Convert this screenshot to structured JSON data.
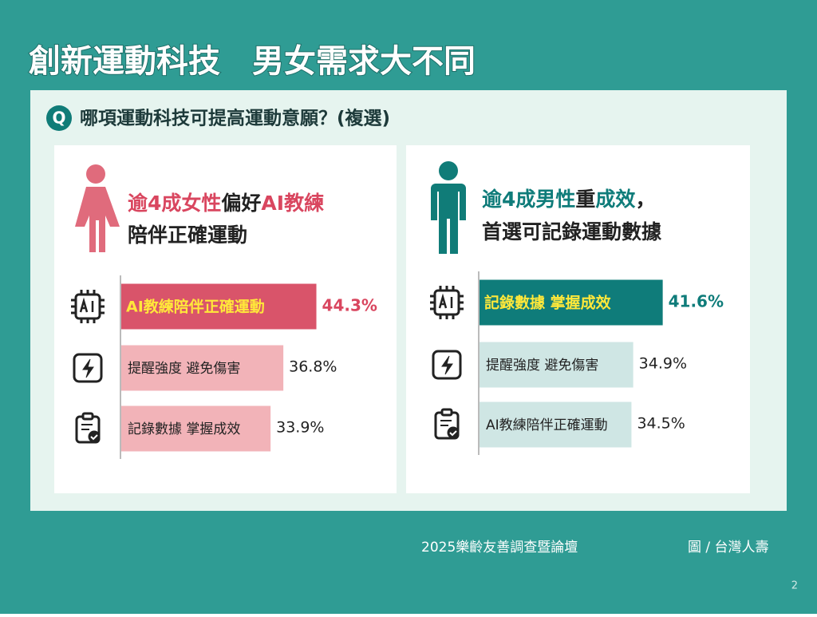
{
  "title": "創新運動科技　男女需求大不同",
  "question": {
    "icon": "Q",
    "text": "哪項運動科技可提高運動意願？(複選)"
  },
  "chart_data": [
    {
      "type": "bar",
      "headline": [
        [
          "逾4成女性",
          "偏好",
          "AI教練"
        ],
        [
          "陪伴正確運動"
        ]
      ],
      "categories": [
        "AI教練陪伴正確運動",
        "提醒強度 避免傷害",
        "記錄數據 掌握成效"
      ],
      "values": [
        44.3,
        36.8,
        33.9
      ],
      "value_labels": [
        "44.3%",
        "36.8%",
        "33.9%"
      ],
      "colors": [
        "#d9546a",
        "#f2b3b8",
        "#f2b3b8"
      ],
      "accent": "#d9465f"
    },
    {
      "type": "bar",
      "headline": [
        [
          "逾4成男性",
          "重",
          "成效",
          "，"
        ],
        [
          "首選可記錄運動數據"
        ]
      ],
      "categories": [
        "記錄數據 掌握成效",
        "提醒強度 避免傷害",
        "AI教練陪伴正確運動"
      ],
      "values": [
        41.6,
        34.9,
        34.5
      ],
      "value_labels": [
        "41.6%",
        "34.9%",
        "34.5%"
      ],
      "colors": [
        "#0f7c7a",
        "#cfe6e4",
        "#cfe6e4"
      ],
      "accent": "#0f7c7a"
    }
  ],
  "footer": {
    "source": "2025樂齡友善調查暨論壇",
    "credit": "圖 / 台灣人壽",
    "page": "2"
  }
}
